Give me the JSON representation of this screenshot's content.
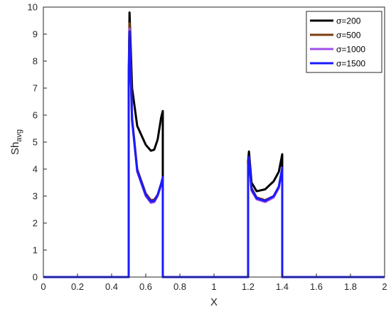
{
  "chart_data": {
    "type": "line",
    "xlabel": "X",
    "ylabel_main": "Sh",
    "ylabel_sub": "avg",
    "xlim": [
      0,
      2
    ],
    "ylim": [
      0,
      10
    ],
    "x_ticks": [
      "0",
      "0.2",
      "0.4",
      "0.6",
      "0.8",
      "1",
      "1.2",
      "1.4",
      "1.6",
      "1.8",
      "2"
    ],
    "y_ticks": [
      "0",
      "1",
      "2",
      "3",
      "4",
      "5",
      "6",
      "7",
      "8",
      "9",
      "10"
    ],
    "grid": false,
    "legend_position": "top-right",
    "series": [
      {
        "name": "σ=200",
        "color": "#000000",
        "x": [
          0,
          0.5,
          0.5,
          0.505,
          0.52,
          0.55,
          0.6,
          0.63,
          0.65,
          0.67,
          0.69,
          0.7,
          0.7,
          1.2,
          1.2,
          1.205,
          1.22,
          1.25,
          1.3,
          1.35,
          1.38,
          1.4,
          1.4,
          2
        ],
        "y": [
          0,
          0,
          7.3,
          9.8,
          7.0,
          5.6,
          4.9,
          4.68,
          4.72,
          5.1,
          5.9,
          6.15,
          0,
          0,
          4.3,
          4.65,
          3.5,
          3.18,
          3.25,
          3.55,
          3.9,
          4.55,
          0,
          0
        ]
      },
      {
        "name": "σ=500",
        "color": "#7a3c10",
        "x": [
          0,
          0.5,
          0.5,
          0.505,
          0.52,
          0.55,
          0.6,
          0.63,
          0.65,
          0.67,
          0.69,
          0.7,
          0.7,
          1.2,
          1.2,
          1.205,
          1.22,
          1.25,
          1.3,
          1.35,
          1.38,
          1.4,
          1.4,
          2
        ],
        "y": [
          0,
          0,
          7.1,
          9.4,
          5.9,
          4.0,
          3.1,
          2.85,
          2.87,
          3.05,
          3.45,
          3.65,
          0,
          0,
          4.1,
          4.45,
          3.3,
          2.95,
          2.85,
          3.0,
          3.35,
          4.0,
          0,
          0
        ]
      },
      {
        "name": "σ=1000",
        "color": "#a04fe8",
        "x": [
          0,
          0.5,
          0.5,
          0.505,
          0.52,
          0.55,
          0.6,
          0.63,
          0.65,
          0.67,
          0.69,
          0.7,
          0.7,
          1.2,
          1.2,
          1.205,
          1.22,
          1.25,
          1.3,
          1.35,
          1.38,
          1.4,
          1.4,
          2
        ],
        "y": [
          0,
          0,
          7.0,
          9.2,
          5.8,
          3.9,
          3.0,
          2.75,
          2.78,
          3.0,
          3.4,
          3.6,
          0,
          0,
          4.0,
          4.4,
          3.2,
          2.88,
          2.78,
          2.95,
          3.3,
          4.0,
          0,
          0
        ]
      },
      {
        "name": "σ=1500",
        "color": "#1a1aff",
        "x": [
          0,
          0.5,
          0.5,
          0.505,
          0.52,
          0.55,
          0.6,
          0.63,
          0.65,
          0.67,
          0.69,
          0.7,
          0.7,
          1.2,
          1.2,
          1.205,
          1.22,
          1.25,
          1.3,
          1.35,
          1.38,
          1.4,
          1.4,
          2
        ],
        "y": [
          0,
          0,
          7.0,
          9.1,
          5.8,
          3.95,
          3.05,
          2.8,
          2.82,
          3.05,
          3.45,
          3.7,
          0,
          0,
          4.1,
          4.45,
          3.25,
          2.92,
          2.82,
          3.0,
          3.35,
          4.05,
          0,
          0
        ]
      }
    ]
  }
}
